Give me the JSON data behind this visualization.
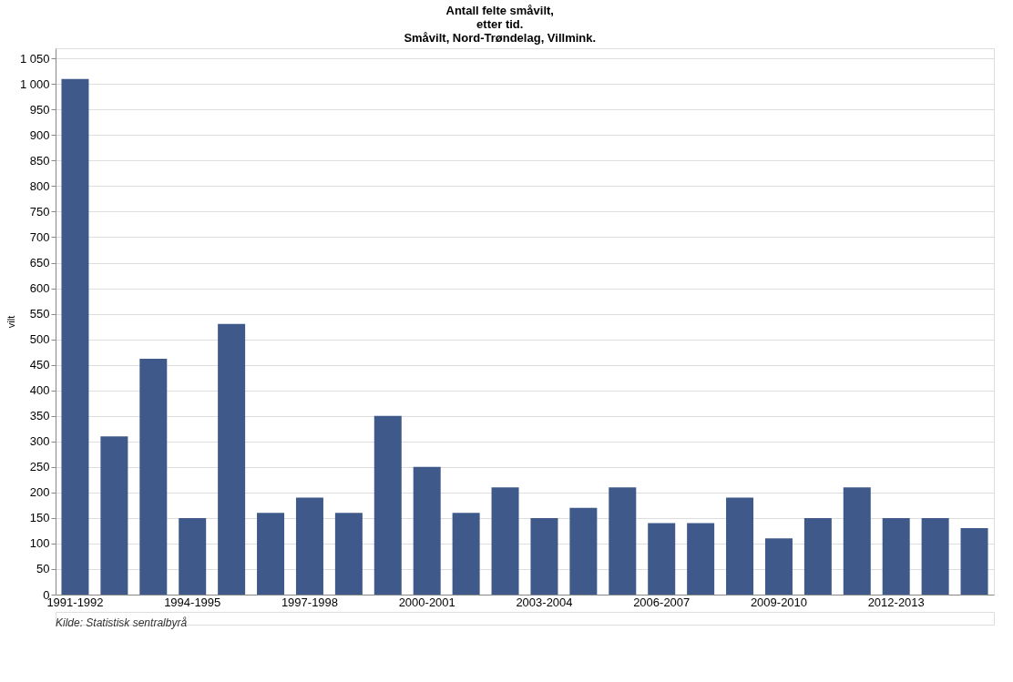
{
  "chart_data": {
    "type": "bar",
    "title": "Antall felte småvilt,\netter tid.\nSmåvilt, Nord-Trøndelag, Villmink.",
    "ylabel": "vilt",
    "categories": [
      "1991-1992",
      null,
      null,
      "1994-1995",
      null,
      null,
      "1997-1998",
      null,
      null,
      "2000-2001",
      null,
      null,
      "2003-2004",
      null,
      null,
      "2006-2007",
      null,
      null,
      "2009-2010",
      null,
      null,
      "2012-2013",
      null,
      null
    ],
    "values": [
      1010,
      310,
      462,
      150,
      530,
      160,
      190,
      160,
      350,
      250,
      160,
      210,
      150,
      170,
      210,
      140,
      140,
      190,
      110,
      150,
      210,
      150,
      150,
      130
    ],
    "color": "#3f5a8a",
    "ylim": [
      0,
      1070
    ],
    "yticks": [
      0,
      50,
      100,
      150,
      200,
      250,
      300,
      350,
      400,
      450,
      500,
      550,
      600,
      650,
      700,
      750,
      800,
      850,
      900,
      950,
      {
        "value": 1000,
        "label": "1 000"
      },
      {
        "value": 1050,
        "label": "1 050"
      }
    ],
    "grid": "y",
    "annotations": [
      "Kilde: Statistisk sentralbyrå"
    ]
  }
}
